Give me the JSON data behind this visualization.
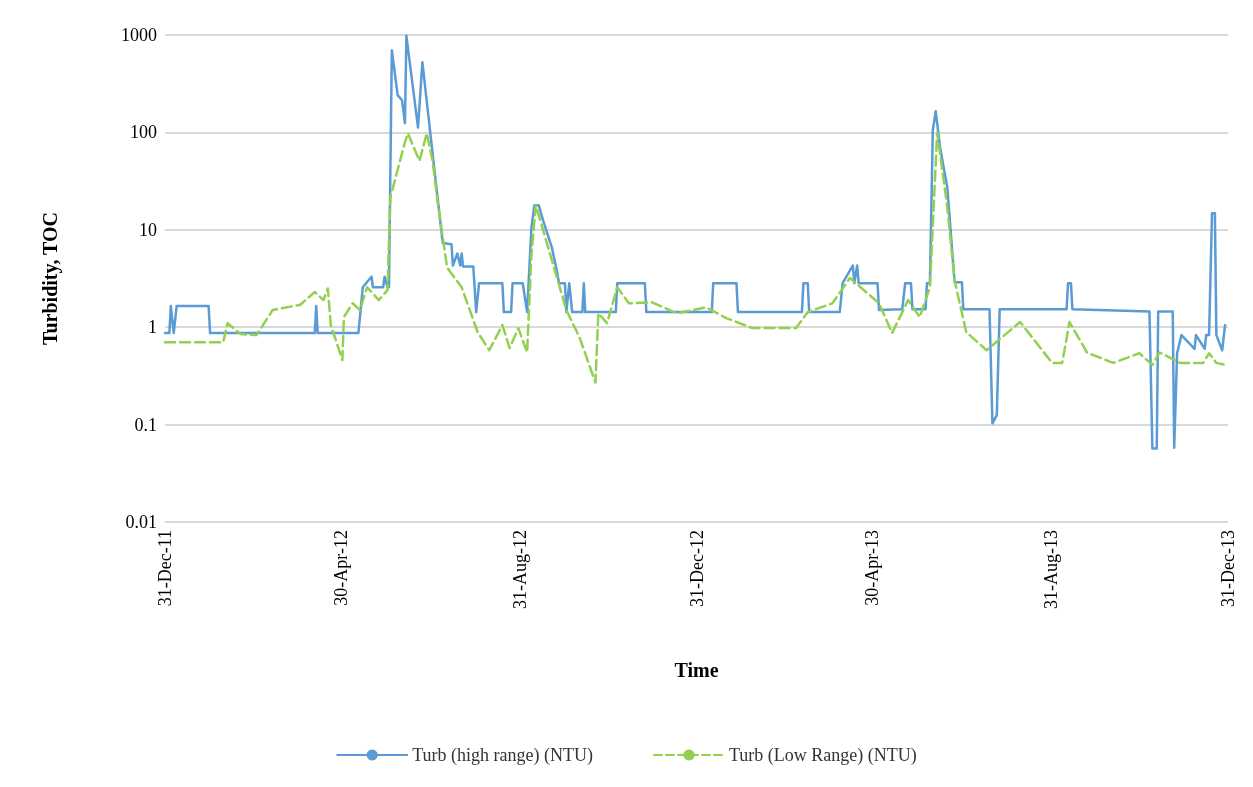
{
  "chart_data": {
    "type": "line",
    "xlabel": "Time",
    "ylabel": "Turbidity, TOC",
    "xlim": [
      "2011-12-31",
      "2013-12-31"
    ],
    "xticks": [
      {
        "value": "2011-12-31",
        "label": "31-Dec-11"
      },
      {
        "value": "2012-04-30",
        "label": "30-Apr-12"
      },
      {
        "value": "2012-08-31",
        "label": "31-Aug-12"
      },
      {
        "value": "2012-12-31",
        "label": "31-Dec-12"
      },
      {
        "value": "2013-04-30",
        "label": "30-Apr-13"
      },
      {
        "value": "2013-08-31",
        "label": "31-Aug-13"
      },
      {
        "value": "2013-12-31",
        "label": "31-Dec-13"
      }
    ],
    "ylim": [
      0.01,
      1000
    ],
    "yticks": [
      0.01,
      0.1,
      1,
      10,
      100,
      1000
    ],
    "log": true,
    "grid": "y",
    "legend": "bottom",
    "marker": "none",
    "series": [
      {
        "name": "Turb (high range) (NTU)",
        "color": "#5b9bd5",
        "line_style": "solid",
        "x": [
          "2011-12-31",
          "2012-01-03",
          "2012-01-04",
          "2012-01-06",
          "2012-01-08",
          "2012-01-30",
          "2012-01-31",
          "2012-04-12",
          "2012-04-13",
          "2012-04-14",
          "2012-05-12",
          "2012-05-15",
          "2012-05-21",
          "2012-05-22",
          "2012-05-29",
          "2012-05-30",
          "2012-06-01",
          "2012-06-02",
          "2012-06-04",
          "2012-06-08",
          "2012-06-11",
          "2012-06-13",
          "2012-06-14",
          "2012-06-22",
          "2012-06-25",
          "2012-07-02",
          "2012-07-09",
          "2012-07-15",
          "2012-07-16",
          "2012-07-19",
          "2012-07-21",
          "2012-07-22",
          "2012-07-23",
          "2012-07-30",
          "2012-08-01",
          "2012-08-03",
          "2012-08-19",
          "2012-08-20",
          "2012-08-25",
          "2012-08-26",
          "2012-09-02",
          "2012-09-05",
          "2012-09-08",
          "2012-09-10",
          "2012-09-13",
          "2012-09-16",
          "2012-09-22",
          "2012-09-25",
          "2012-09-27",
          "2012-10-01",
          "2012-10-02",
          "2012-10-04",
          "2012-10-06",
          "2012-10-13",
          "2012-10-14",
          "2012-10-15",
          "2012-11-05",
          "2012-11-06",
          "2012-11-25",
          "2012-11-26",
          "2013-01-10",
          "2013-01-11",
          "2013-01-27",
          "2013-01-28",
          "2013-03-13",
          "2013-03-14",
          "2013-03-17",
          "2013-03-18",
          "2013-04-08",
          "2013-04-10",
          "2013-04-17",
          "2013-04-18",
          "2013-04-20",
          "2013-04-21",
          "2013-05-04",
          "2013-05-05",
          "2013-05-21",
          "2013-05-23",
          "2013-05-27",
          "2013-05-28",
          "2013-06-06",
          "2013-06-07",
          "2013-06-09",
          "2013-06-11",
          "2013-06-13",
          "2013-06-16",
          "2013-06-21",
          "2013-06-26",
          "2013-07-01",
          "2013-07-02",
          "2013-07-20",
          "2013-07-22",
          "2013-07-25",
          "2013-07-27",
          "2013-09-11",
          "2013-09-12",
          "2013-09-14",
          "2013-09-15",
          "2013-11-07",
          "2013-11-09",
          "2013-11-12",
          "2013-11-13",
          "2013-11-23",
          "2013-11-24",
          "2013-11-26",
          "2013-11-29",
          "2013-12-08",
          "2013-12-09",
          "2013-12-15",
          "2013-12-16",
          "2013-12-18",
          "2013-12-20",
          "2013-12-22",
          "2013-12-23",
          "2013-12-27",
          "2013-12-29"
        ],
        "values": [
          0.87,
          0.87,
          1.65,
          0.87,
          1.65,
          1.65,
          0.87,
          0.87,
          1.65,
          0.87,
          0.87,
          2.57,
          3.3,
          2.57,
          2.57,
          3.3,
          2.57,
          2.57,
          698,
          241,
          214,
          124,
          980,
          112,
          525,
          61,
          7.3,
          7.1,
          4.3,
          5.7,
          4.3,
          5.7,
          4.2,
          4.2,
          1.43,
          2.83,
          2.83,
          1.43,
          1.43,
          2.83,
          2.83,
          1.43,
          10.6,
          17.9,
          17.9,
          12.5,
          6.6,
          4.1,
          2.83,
          2.83,
          1.43,
          2.83,
          1.43,
          1.43,
          2.83,
          1.43,
          1.43,
          2.83,
          2.83,
          1.43,
          1.43,
          2.83,
          2.83,
          1.43,
          1.43,
          2.83,
          2.83,
          1.43,
          1.43,
          2.83,
          4.3,
          2.83,
          4.3,
          2.83,
          2.83,
          1.5,
          1.53,
          2.83,
          2.83,
          1.53,
          1.53,
          2.83,
          2.83,
          105,
          165,
          70,
          27,
          2.9,
          2.9,
          1.53,
          1.53,
          0.103,
          0.125,
          1.53,
          1.53,
          2.83,
          2.83,
          1.53,
          1.45,
          0.057,
          0.057,
          1.45,
          1.45,
          0.058,
          0.54,
          0.83,
          0.6,
          0.83,
          0.6,
          0.83,
          0.83,
          14.8,
          14.8,
          0.83,
          0.58,
          1.05
        ]
      },
      {
        "name": "Turb (Low Range) (NTU)",
        "color": "#92d050",
        "line_style": "dashed",
        "x": [
          "2011-12-31",
          "2012-02-09",
          "2012-02-12",
          "2012-02-21",
          "2012-03-03",
          "2012-03-14",
          "2012-04-02",
          "2012-04-12",
          "2012-04-18",
          "2012-04-21",
          "2012-04-23",
          "2012-05-01",
          "2012-05-02",
          "2012-05-08",
          "2012-05-13",
          "2012-05-18",
          "2012-05-26",
          "2012-06-01",
          "2012-06-03",
          "2012-06-13",
          "2012-06-15",
          "2012-06-23",
          "2012-06-28",
          "2012-07-02",
          "2012-07-06",
          "2012-07-12",
          "2012-07-22",
          "2012-08-02",
          "2012-08-10",
          "2012-08-19",
          "2012-08-24",
          "2012-08-30",
          "2012-09-05",
          "2012-09-08",
          "2012-09-11",
          "2012-09-22",
          "2012-10-02",
          "2012-10-11",
          "2012-10-22",
          "2012-10-24",
          "2012-10-30",
          "2012-11-06",
          "2012-11-14",
          "2012-11-30",
          "2012-12-17",
          "2013-01-06",
          "2013-01-20",
          "2013-02-07",
          "2013-03-09",
          "2013-03-17",
          "2013-04-03",
          "2013-04-15",
          "2013-05-05",
          "2013-05-14",
          "2013-05-25",
          "2013-06-02",
          "2013-06-09",
          "2013-06-14",
          "2013-06-21",
          "2013-06-26",
          "2013-07-04",
          "2013-07-18",
          "2013-08-01",
          "2013-08-10",
          "2013-08-21",
          "2013-09-01",
          "2013-09-08",
          "2013-09-13",
          "2013-09-25",
          "2013-10-13",
          "2013-10-31",
          "2013-11-09",
          "2013-11-14",
          "2013-11-28",
          "2013-12-14",
          "2013-12-18",
          "2013-12-23",
          "2013-12-29"
        ],
        "values": [
          0.7,
          0.7,
          1.1,
          0.85,
          0.83,
          1.5,
          1.7,
          2.3,
          1.9,
          2.5,
          1.05,
          0.46,
          1.27,
          1.76,
          1.5,
          2.57,
          1.9,
          2.4,
          21.6,
          79,
          98,
          51,
          98,
          51,
          17,
          4.1,
          2.57,
          0.89,
          0.58,
          1.05,
          0.61,
          0.98,
          0.55,
          5.7,
          17.9,
          4.9,
          1.5,
          0.79,
          0.27,
          1.39,
          1.1,
          2.57,
          1.76,
          1.8,
          1.39,
          1.6,
          1.24,
          0.98,
          0.98,
          1.43,
          1.76,
          3.2,
          1.76,
          0.87,
          1.9,
          1.27,
          2.57,
          100,
          17,
          3.0,
          0.89,
          0.58,
          0.87,
          1.13,
          0.7,
          0.43,
          0.43,
          1.13,
          0.55,
          0.43,
          0.54,
          0.41,
          0.55,
          0.43,
          0.43,
          0.54,
          0.43,
          0.41
        ]
      }
    ]
  }
}
